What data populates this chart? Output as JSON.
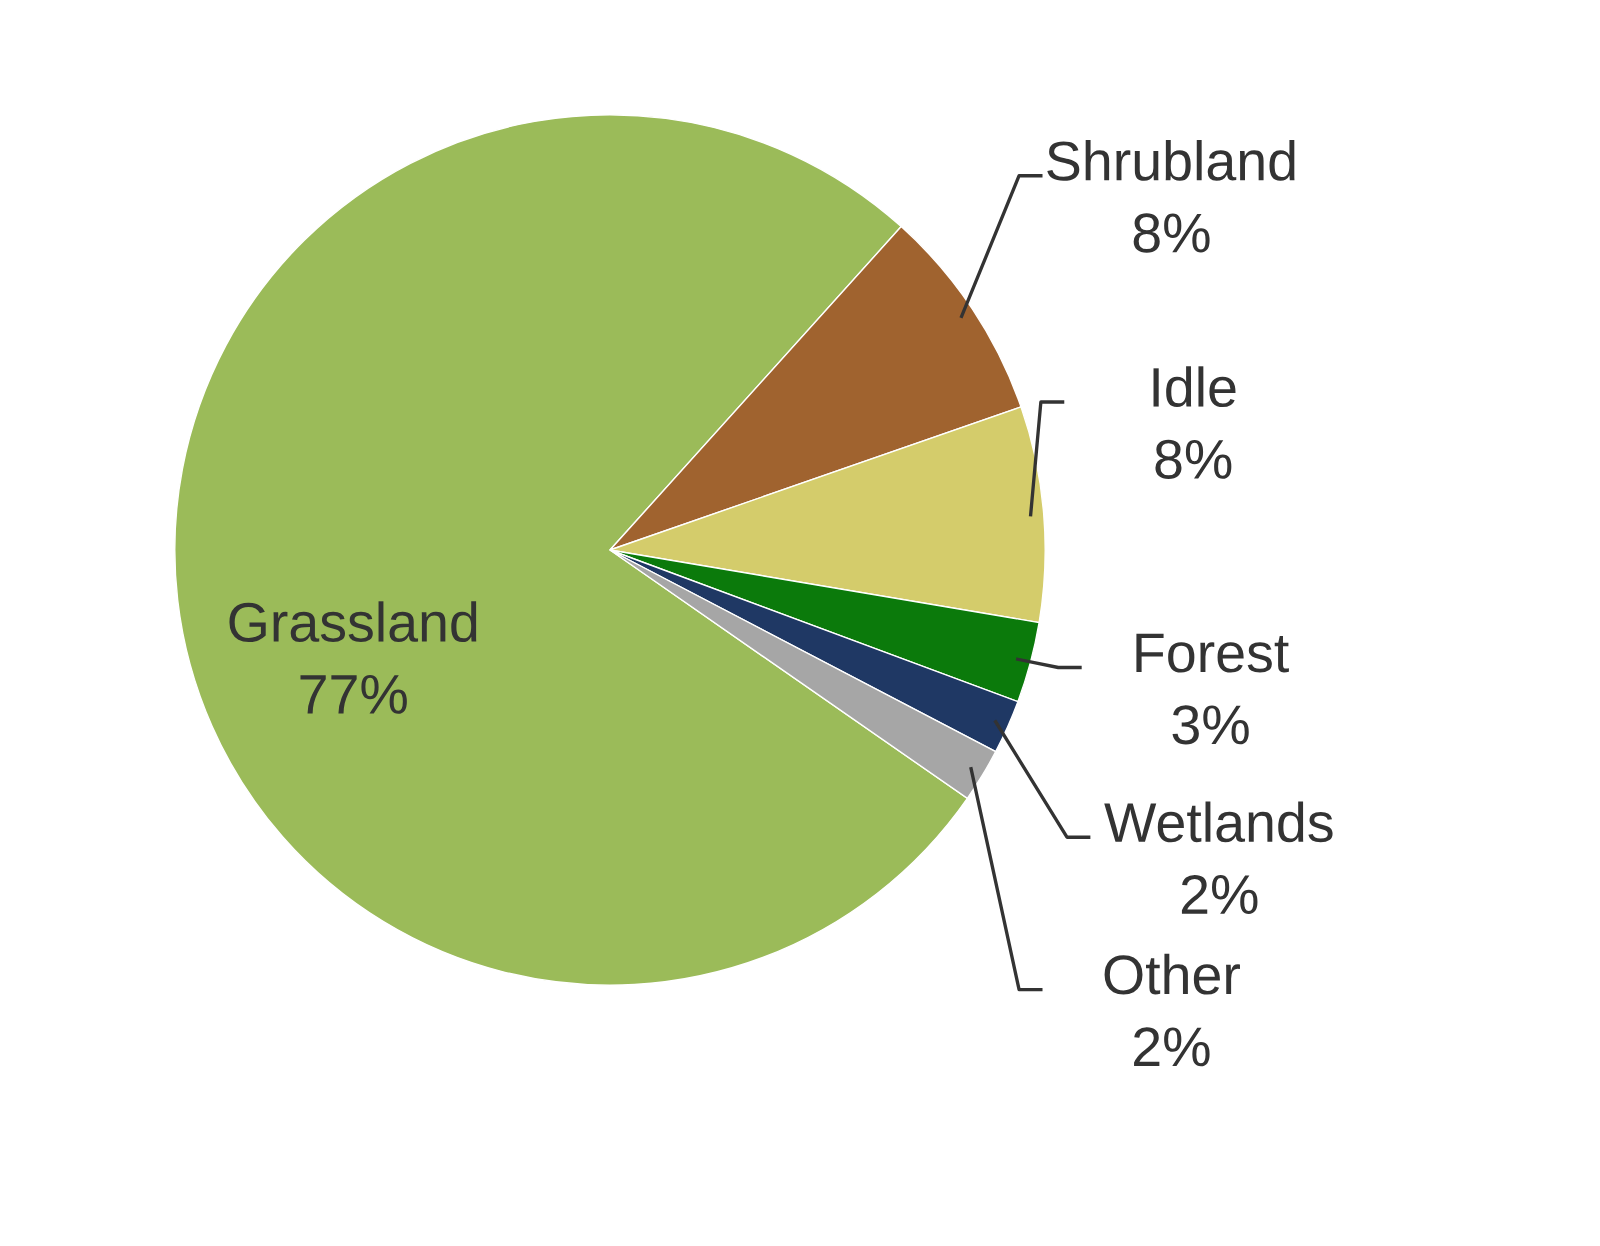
{
  "chart_data": {
    "type": "pie",
    "categories": [
      "Grassland",
      "Shrubland",
      "Idle",
      "Forest",
      "Wetlands",
      "Other"
    ],
    "values": [
      77,
      8,
      8,
      3,
      2,
      2
    ],
    "colors": [
      "#9bbb59",
      "#a0632f",
      "#d4cc6b",
      "#0b7a0b",
      "#1f3864",
      "#a6a6a6"
    ],
    "value_labels": [
      "77%",
      "8%",
      "8%",
      "3%",
      "2%",
      "2%"
    ],
    "legend": false
  }
}
